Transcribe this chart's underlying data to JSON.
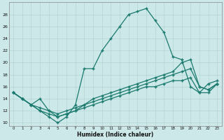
{
  "xlabel": "Humidex (Indice chaleur)",
  "bg_color": "#cce8e8",
  "line_color": "#1a7a6e",
  "grid_color": "#b8d8d8",
  "xlim": [
    -0.5,
    23.5
  ],
  "ylim": [
    9.5,
    30.0
  ],
  "xticks": [
    0,
    1,
    2,
    3,
    4,
    5,
    6,
    7,
    8,
    9,
    10,
    11,
    12,
    13,
    14,
    15,
    16,
    17,
    18,
    19,
    20,
    21,
    22,
    23
  ],
  "yticks": [
    10,
    12,
    14,
    16,
    18,
    20,
    22,
    24,
    26,
    28
  ],
  "line1_x": [
    0,
    1,
    2,
    3,
    4,
    5,
    6,
    7,
    8,
    9,
    10,
    11,
    12,
    13,
    14,
    15,
    16,
    17,
    18,
    19,
    20,
    21,
    22,
    23
  ],
  "line1_y": [
    15,
    14,
    13,
    12,
    11,
    10,
    11,
    13,
    19,
    19,
    22,
    24,
    26,
    28,
    28.5,
    29,
    27,
    25,
    21,
    20.5,
    16,
    15,
    16.5,
    17
  ],
  "line2_x": [
    0,
    1,
    2,
    3,
    4,
    5,
    6,
    7,
    8,
    9,
    10,
    11,
    12,
    13,
    14,
    15,
    16,
    17,
    18,
    19,
    20,
    21,
    22,
    23
  ],
  "line2_y": [
    15,
    14,
    13,
    14,
    12,
    11,
    11.5,
    12,
    13,
    14,
    14.5,
    15,
    15.5,
    16,
    16.5,
    17,
    17.5,
    18,
    18.5,
    20,
    20.5,
    16,
    15.5,
    16.5
  ],
  "line3_x": [
    0,
    1,
    2,
    3,
    4,
    5,
    6,
    7,
    8,
    9,
    10,
    11,
    12,
    13,
    14,
    15,
    16,
    17,
    18,
    19,
    20,
    21,
    22,
    23
  ],
  "line3_y": [
    15,
    14,
    13,
    12.5,
    12,
    11.5,
    12,
    12.5,
    13,
    13.5,
    14,
    14.5,
    15,
    15.5,
    16,
    16.5,
    17,
    17.5,
    18,
    18.5,
    19,
    16,
    15.5,
    16.5
  ],
  "line4_x": [
    0,
    1,
    2,
    3,
    4,
    5,
    6,
    7,
    8,
    9,
    10,
    11,
    12,
    13,
    14,
    15,
    16,
    17,
    18,
    19,
    20,
    21,
    22,
    23
  ],
  "line4_y": [
    15,
    14,
    13,
    12,
    11.5,
    11,
    11.5,
    12,
    12.5,
    13,
    13.5,
    14,
    14.5,
    15,
    15.5,
    16,
    16,
    16.5,
    17,
    17,
    17.5,
    15,
    15,
    16.5
  ]
}
